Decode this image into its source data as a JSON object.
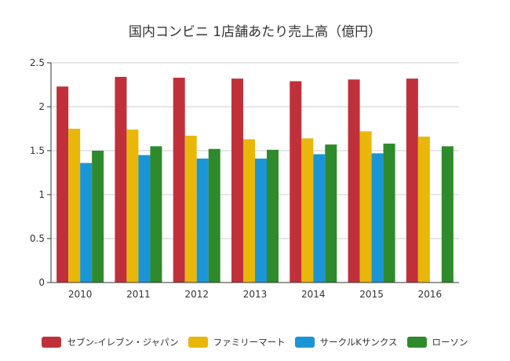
{
  "chart_data": {
    "type": "bar",
    "title": "国内コンビニ 1店舗あたり売上高（億円）",
    "xlabel": "",
    "ylabel": "",
    "ylim": [
      0,
      2.5
    ],
    "yticks": [
      "0",
      "0.5",
      "1",
      "1.5",
      "2",
      "2.5"
    ],
    "ytick_values": [
      0,
      0.5,
      1,
      1.5,
      2,
      2.5
    ],
    "grid": true,
    "legend_position": "bottom",
    "categories": [
      "2010",
      "2011",
      "2012",
      "2013",
      "2014",
      "2015",
      "2016"
    ],
    "series": [
      {
        "name": "セブン-イレブン・ジャパン",
        "color": "#c0303a",
        "values": [
          2.23,
          2.34,
          2.33,
          2.32,
          2.29,
          2.31,
          2.32
        ]
      },
      {
        "name": "ファミリーマート",
        "color": "#e8b70a",
        "values": [
          1.75,
          1.74,
          1.67,
          1.63,
          1.64,
          1.72,
          1.66
        ]
      },
      {
        "name": "サークルKサンクス",
        "color": "#1a96d6",
        "values": [
          1.36,
          1.45,
          1.41,
          1.41,
          1.46,
          1.47,
          null
        ]
      },
      {
        "name": "ローソン",
        "color": "#2e8a2a",
        "values": [
          1.5,
          1.55,
          1.52,
          1.51,
          1.57,
          1.58,
          1.55
        ]
      }
    ]
  }
}
